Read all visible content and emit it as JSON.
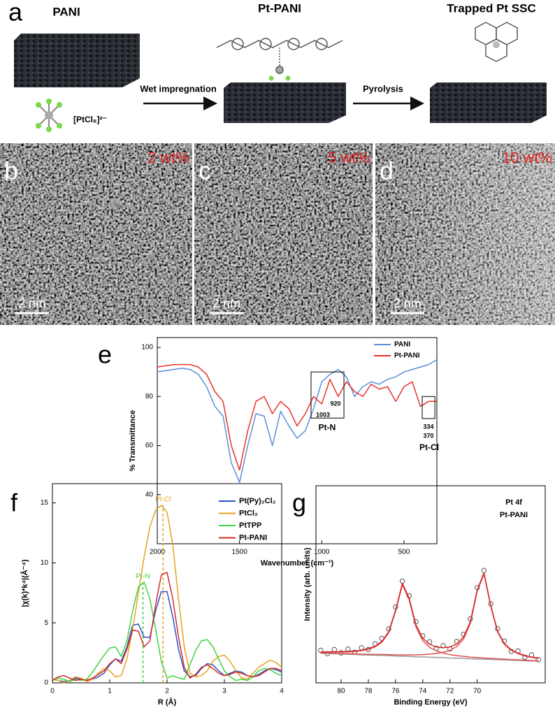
{
  "panel_a": {
    "label": "a",
    "pani": "PANI",
    "pt_pani": "Pt-PANI",
    "trapped": "Trapped Pt SSC",
    "precursor": "[PtCl₆]²⁻",
    "step1": "Wet impregnation",
    "step2": "Pyrolysis"
  },
  "images": [
    {
      "label": "b",
      "loading": "2 wt%",
      "scale": "2 nm"
    },
    {
      "label": "c",
      "loading": "5 wt%",
      "scale": "2 nm"
    },
    {
      "label": "d",
      "loading": "10 wt%",
      "scale": "2 nm"
    }
  ],
  "chart_data": [
    {
      "type": "line",
      "panel": "e",
      "xlabel": "Wavenumber (cm⁻¹)",
      "ylabel": "% Transmittance",
      "x": [
        2000,
        1950,
        1900,
        1850,
        1800,
        1750,
        1700,
        1650,
        1600,
        1550,
        1500,
        1450,
        1400,
        1350,
        1300,
        1250,
        1200,
        1150,
        1100,
        1050,
        1000,
        950,
        900,
        850,
        800,
        750,
        700,
        650,
        600,
        550,
        500,
        450,
        400,
        350,
        300
      ],
      "xlim": [
        2000,
        300
      ],
      "xticks": [
        2000,
        1500,
        1000,
        500
      ],
      "ylim": [
        20,
        104
      ],
      "yticks": [
        40,
        60,
        80,
        100
      ],
      "legend": "upper right",
      "series": [
        {
          "name": "PANI",
          "color": "#5b8fd9",
          "values": [
            90,
            90.5,
            91,
            91.5,
            91,
            89,
            84,
            76,
            72,
            53,
            45,
            60,
            73,
            72,
            60,
            74,
            68,
            63,
            66,
            75,
            86,
            89,
            91,
            88,
            80,
            84,
            86,
            85,
            87,
            88,
            90,
            91,
            92,
            93,
            95
          ]
        },
        {
          "name": "Pt-PANI",
          "color": "#e8322a",
          "values": [
            92,
            92.5,
            93,
            93,
            93,
            92,
            89,
            82,
            78,
            60,
            50,
            66,
            78,
            80,
            73,
            78,
            75,
            68,
            73,
            80,
            77,
            87,
            80,
            86,
            82,
            80,
            85,
            83,
            84,
            78,
            84,
            86,
            76,
            78,
            78
          ]
        }
      ],
      "boxes": [
        {
          "label": "Pt-N",
          "xlim": [
            1065,
            865
          ],
          "ylim": [
            71.2,
            90
          ],
          "notes": [
            "920",
            "1003"
          ]
        },
        {
          "label": "Pt-Cl",
          "xlim": [
            389,
            312
          ],
          "ylim": [
            71,
            80
          ],
          "notes": [
            "334",
            "370"
          ]
        }
      ]
    },
    {
      "type": "line",
      "panel": "f",
      "xlabel": "R (Å)",
      "ylabel": "|χ(k)*k⁴|(Å⁻⁴)",
      "x": [
        0,
        0.1,
        0.2,
        0.3,
        0.4,
        0.5,
        0.6,
        0.7,
        0.8,
        0.9,
        1.0,
        1.1,
        1.2,
        1.3,
        1.4,
        1.5,
        1.6,
        1.7,
        1.8,
        1.9,
        2.0,
        2.1,
        2.2,
        2.3,
        2.4,
        2.5,
        2.6,
        2.7,
        2.8,
        2.9,
        3.0,
        3.1,
        3.2,
        3.3,
        3.4,
        3.5,
        3.6,
        3.7,
        3.8,
        3.9,
        4.0
      ],
      "xlim": [
        0,
        4
      ],
      "xticks": [
        0,
        1,
        2,
        3,
        4
      ],
      "ylim": [
        0,
        16.6
      ],
      "yticks": [
        0,
        5,
        10,
        15
      ],
      "legend": "upper right",
      "series": [
        {
          "name": "Pt(Py)₂Cl₂",
          "color": "#2b4fc9",
          "values": [
            0.3,
            0.2,
            0.1,
            0.2,
            0.4,
            0.3,
            0.2,
            0.3,
            0.5,
            0.8,
            1.5,
            2.0,
            1.8,
            3.0,
            4.8,
            4.9,
            3.8,
            3.8,
            6.0,
            7.6,
            7.6,
            5.5,
            2.8,
            1.0,
            0.5,
            0.6,
            1.2,
            1.6,
            1.5,
            1.0,
            0.6,
            0.8,
            1.0,
            0.9,
            0.6,
            0.5,
            0.7,
            1.0,
            1.2,
            1.1,
            0.9
          ]
        },
        {
          "name": "PtCl₂",
          "color": "#e8a020",
          "values": [
            0.3,
            0.2,
            0,
            0.2,
            0.5,
            0.4,
            0.1,
            0.3,
            0.8,
            1.2,
            1.0,
            0.5,
            0.6,
            2.0,
            4.5,
            7.5,
            10.5,
            13,
            14.4,
            14.8,
            14.2,
            11.5,
            7,
            3,
            0.8,
            0.5,
            0.6,
            1,
            1.8,
            2.2,
            2.3,
            1.8,
            1.0,
            0.4,
            0.3,
            0.8,
            1.3,
            1.6,
            1.9,
            1.7,
            1.3
          ]
        },
        {
          "name": "PtTPP",
          "color": "#3ed43e",
          "values": [
            0.2,
            0.4,
            0.3,
            0.1,
            0.3,
            0.2,
            0.3,
            0.9,
            1.6,
            2.3,
            2.9,
            3.0,
            2.2,
            3.5,
            6.0,
            8.0,
            8.4,
            7.0,
            4.5,
            1.8,
            0.4,
            0.6,
            0.4,
            0.3,
            1.5,
            2.7,
            3.5,
            3.6,
            3.0,
            2.0,
            1.0,
            0.5,
            0.2,
            0.3,
            0.2,
            0.5,
            1.0,
            1.2,
            1.1,
            0.8,
            0.6
          ]
        },
        {
          "name": "Pt-PANI",
          "color": "#d42a2a",
          "values": [
            0.2,
            0.5,
            0.6,
            0.4,
            0.2,
            0.3,
            0.2,
            0.4,
            0.7,
            1.0,
            1.6,
            2.0,
            1.6,
            2.8,
            4.4,
            4.3,
            3.0,
            3.5,
            6.5,
            9.0,
            9.2,
            7.0,
            3.8,
            1.3,
            0.4,
            0.7,
            1.3,
            1.5,
            1.2,
            0.8,
            0.6,
            0.7,
            0.9,
            0.8,
            0.6,
            0.5,
            0.6,
            0.9,
            1.2,
            1.2,
            1.0
          ]
        }
      ],
      "vlines": [
        {
          "label": "Pt-N",
          "x": 1.58,
          "top": 8.4,
          "color": "#3ed43e"
        },
        {
          "label": "Pt-Cl",
          "x": 1.93,
          "top": 14.8,
          "color": "#e8a020"
        }
      ]
    },
    {
      "type": "line",
      "panel": "g",
      "xlabel": "Binding Energy (eV)",
      "ylabel": "Intensity (arb. units)",
      "annotations": [
        "Pt 4f",
        "Pt-PANI"
      ],
      "x": [
        81.5,
        81,
        80.5,
        80,
        79.5,
        79,
        78.5,
        78,
        77.5,
        77,
        76.5,
        76,
        75.5,
        75,
        74.5,
        74,
        73.5,
        73,
        72.5,
        72,
        71.5,
        71,
        70.5,
        70,
        69.5,
        69,
        68.5,
        68,
        67.5,
        67,
        66.5,
        66,
        65.5
      ],
      "xlim": [
        81.85,
        65
      ],
      "xticks": [
        80,
        78,
        76,
        74,
        72,
        70
      ],
      "ylim": [
        0,
        100
      ],
      "series": [
        {
          "color": "#555555",
          "marker": "open-circle",
          "values": [
            16.5,
            14.8,
            16.9,
            15.2,
            17.1,
            15.5,
            17.8,
            16.9,
            19.8,
            22.5,
            27.4,
            38.5,
            51.6,
            44.2,
            31.0,
            23.9,
            20.8,
            17.5,
            18.9,
            17.2,
            21.0,
            24.6,
            32.5,
            48.3,
            57.0,
            40.1,
            27.5,
            21.2,
            15.9,
            16.2,
            13.0,
            14.2,
            11.8
          ]
        },
        {
          "color": "#999999",
          "values": [
            15,
            14.9,
            14.8,
            14.6,
            14.5,
            14.4,
            14.2,
            14.1,
            14,
            13.9,
            13.8,
            13.6,
            13.5,
            13.4,
            13.2,
            13.1,
            13,
            12.9,
            12.8,
            12.6,
            12.5,
            12.4,
            12.2,
            12.1,
            12,
            11.9,
            11.8,
            11.6,
            11.5,
            11.4,
            11.2,
            11.1,
            11
          ]
        },
        {
          "color": "#e05050",
          "values": [
            15.5,
            15.5,
            15.6,
            15.6,
            15.7,
            15.9,
            16.3,
            17.0,
            18.2,
            20.6,
            25.5,
            36.2,
            49.8,
            42.2,
            28.4,
            21.4,
            18,
            16.2,
            15.1,
            14.3,
            13.8,
            13.45,
            13.05,
            12.8,
            12.6,
            12.4,
            12.2,
            12,
            11.8,
            11.7,
            11.5,
            11.3,
            11.2
          ]
        },
        {
          "color": "#e05050",
          "values": [
            15.2,
            15.1,
            15.0,
            14.8,
            14.8,
            14.7,
            14.5,
            14.5,
            14.4,
            14.4,
            14.3,
            14.2,
            14.2,
            14.2,
            14.2,
            14.3,
            14.6,
            14.9,
            15.5,
            16.5,
            18.4,
            22.2,
            30.2,
            46.4,
            55.2,
            38.7,
            25.8,
            19.5,
            16.5,
            14.8,
            13.6,
            12.9,
            12.4
          ]
        },
        {
          "color": "#d42a2a",
          "values": [
            15.7,
            15.7,
            15.8,
            15.8,
            16.0,
            16.2,
            16.6,
            17.4,
            18.6,
            21.1,
            26.0,
            36.8,
            50.5,
            43.0,
            29.4,
            22.6,
            19.6,
            18.2,
            17.8,
            18.2,
            19.7,
            23.3,
            31.1,
            47.1,
            55.8,
            39.2,
            26.2,
            19.9,
            16.8,
            15.1,
            13.9,
            13.1,
            12.6
          ]
        }
      ]
    }
  ]
}
